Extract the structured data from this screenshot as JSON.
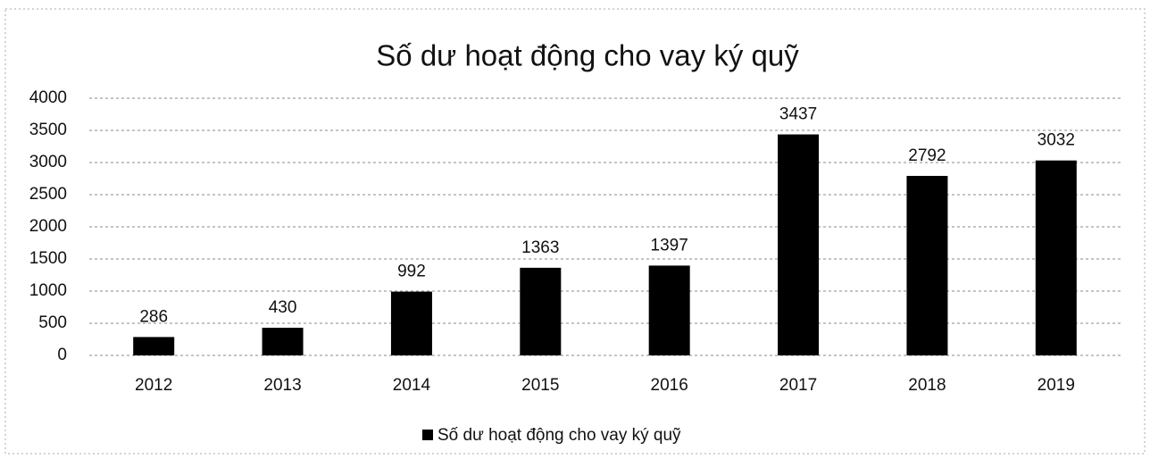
{
  "chart_data": {
    "type": "bar",
    "title": "Số dư hoạt động cho vay ký quỹ",
    "categories": [
      "2012",
      "2013",
      "2014",
      "2015",
      "2016",
      "2017",
      "2018",
      "2019"
    ],
    "series": [
      {
        "name": "Số dư hoạt động cho vay ký quỹ",
        "color": "#000000",
        "values": [
          286,
          430,
          992,
          1363,
          1397,
          3437,
          2792,
          3032
        ]
      }
    ],
    "ylim": [
      0,
      4000
    ],
    "yticks": [
      0,
      500,
      1000,
      1500,
      2000,
      2500,
      3000,
      3500,
      4000
    ],
    "grid": true,
    "legend": "bottom",
    "data_labels": true
  }
}
